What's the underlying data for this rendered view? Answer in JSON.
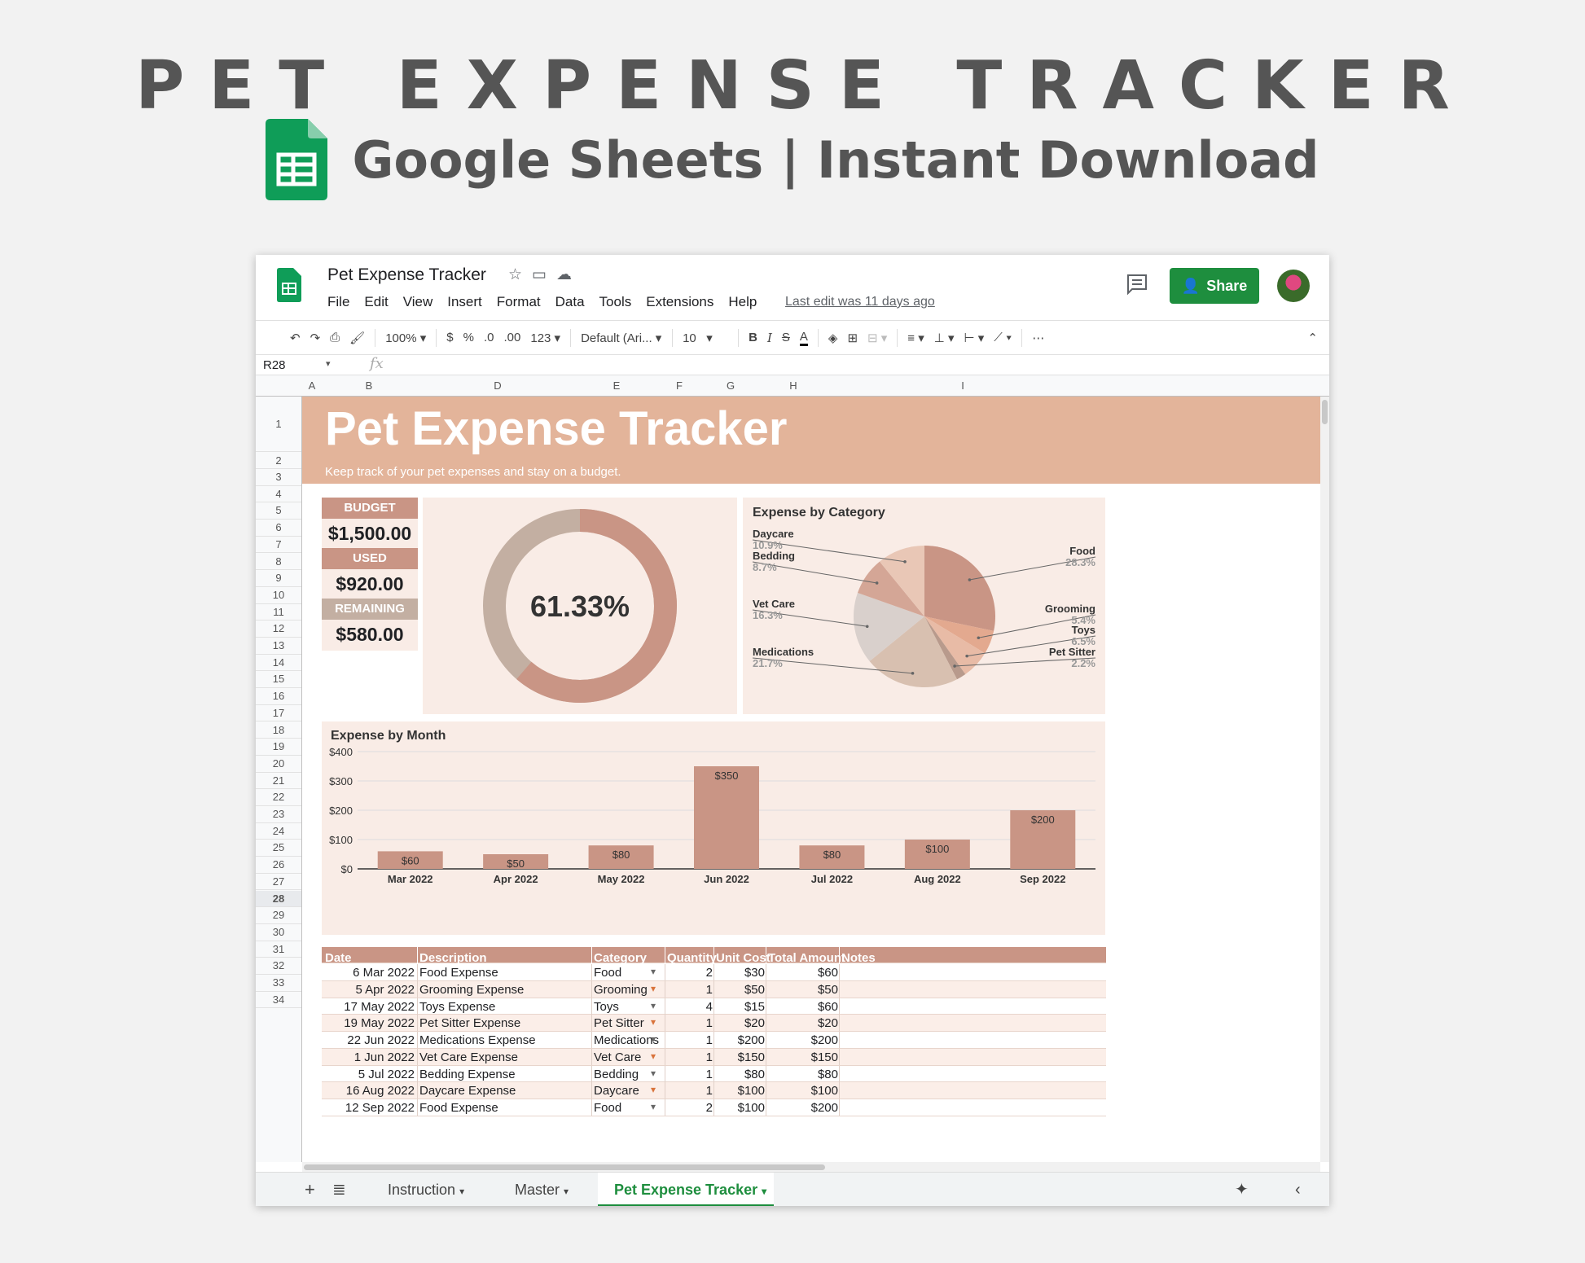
{
  "hero": {
    "title": "PET EXPENSE TRACKER",
    "subtitle": "Google Sheets | Instant Download"
  },
  "app": {
    "doc_title": "Pet Expense Tracker",
    "menu": [
      "File",
      "Edit",
      "View",
      "Insert",
      "Format",
      "Data",
      "Tools",
      "Extensions",
      "Help"
    ],
    "last_edit": "Last edit was 11 days ago",
    "share_label": "Share",
    "toolbar": {
      "zoom": "100%",
      "currency": "$",
      "percent": "%",
      "dec_less": ".0",
      "dec_more": ".00",
      "number_format": "123",
      "font": "Default (Ari...",
      "font_size": "10"
    },
    "name_box": "R28",
    "fx": "fx"
  },
  "columns": [
    "A",
    "B",
    "",
    "D",
    "E",
    "F",
    "G",
    "H",
    "I"
  ],
  "rows": [
    "1",
    "2",
    "3",
    "4",
    "5",
    "6",
    "7",
    "8",
    "9",
    "10",
    "11",
    "12",
    "13",
    "14",
    "15",
    "16",
    "17",
    "18",
    "19",
    "20",
    "21",
    "22",
    "23",
    "24",
    "25",
    "26",
    "27",
    "28",
    "29",
    "30",
    "31",
    "32",
    "33",
    "34"
  ],
  "banner": {
    "title": "Pet Expense Tracker",
    "subtitle": "Keep track of your pet expenses and stay on a budget."
  },
  "kpi": {
    "budget_label": "BUDGET",
    "budget": "$1,500.00",
    "used_label": "USED",
    "used": "$920.00",
    "remaining_label": "REMAINING",
    "remaining": "$580.00"
  },
  "donut": {
    "percent_label": "61.33%",
    "used_fraction": 0.6133,
    "colors": {
      "used": "#c99585",
      "rest": "#c3afa2"
    }
  },
  "chart_data": [
    {
      "type": "pie",
      "title": "Expense by Category",
      "slices": [
        {
          "name": "Food",
          "label": "28.3%",
          "value": 28.3,
          "color": "#c99585"
        },
        {
          "name": "Grooming",
          "label": "5.4%",
          "value": 5.4,
          "color": "#e3a98f"
        },
        {
          "name": "Toys",
          "label": "6.5%",
          "value": 6.5,
          "color": "#e8bba6"
        },
        {
          "name": "Pet Sitter",
          "label": "2.2%",
          "value": 2.2,
          "color": "#b89a8c"
        },
        {
          "name": "Medications",
          "label": "21.7%",
          "value": 21.7,
          "color": "#d8c0b0"
        },
        {
          "name": "Vet Care",
          "label": "16.3%",
          "value": 16.3,
          "color": "#d9d0cc"
        },
        {
          "name": "Bedding",
          "label": "8.7%",
          "value": 8.7,
          "color": "#d4a696"
        },
        {
          "name": "Daycare",
          "label": "10.9%",
          "value": 10.9,
          "color": "#e9c7b6"
        }
      ]
    },
    {
      "type": "bar",
      "title": "Expense by Month",
      "categories": [
        "Mar 2022",
        "Apr 2022",
        "May 2022",
        "Jun 2022",
        "Jul 2022",
        "Aug 2022",
        "Sep 2022"
      ],
      "values": [
        60,
        50,
        80,
        350,
        80,
        100,
        200
      ],
      "data_labels": [
        "$60",
        "$50",
        "$80",
        "$350",
        "$80",
        "$100",
        "$200"
      ],
      "ylim": [
        0,
        400
      ],
      "yticks": [
        "$0",
        "$100",
        "$200",
        "$300",
        "$400"
      ],
      "grid": true,
      "color": "#c99585"
    }
  ],
  "table": {
    "headers": [
      "Date",
      "Description",
      "Category",
      "Quantity",
      "Unit Cost",
      "Total Amount",
      "Notes"
    ],
    "rows": [
      [
        "6 Mar 2022",
        "Food Expense",
        "Food",
        "2",
        "$30",
        "$60",
        ""
      ],
      [
        "5 Apr 2022",
        "Grooming Expense",
        "Grooming",
        "1",
        "$50",
        "$50",
        ""
      ],
      [
        "17 May 2022",
        "Toys Expense",
        "Toys",
        "4",
        "$15",
        "$60",
        ""
      ],
      [
        "19 May 2022",
        "Pet Sitter Expense",
        "Pet Sitter",
        "1",
        "$20",
        "$20",
        ""
      ],
      [
        "22 Jun 2022",
        "Medications Expense",
        "Medications",
        "1",
        "$200",
        "$200",
        ""
      ],
      [
        "1 Jun 2022",
        "Vet Care Expense",
        "Vet Care",
        "1",
        "$150",
        "$150",
        ""
      ],
      [
        "5 Jul 2022",
        "Bedding Expense",
        "Bedding",
        "1",
        "$80",
        "$80",
        ""
      ],
      [
        "16 Aug 2022",
        "Daycare Expense",
        "Daycare",
        "1",
        "$100",
        "$100",
        ""
      ],
      [
        "12 Sep 2022",
        "Food Expense",
        "Food",
        "2",
        "$100",
        "$200",
        ""
      ]
    ]
  },
  "sheet_tabs": [
    "Instruction",
    "Master",
    "Pet Expense Tracker"
  ],
  "active_tab": "Pet Expense Tracker"
}
